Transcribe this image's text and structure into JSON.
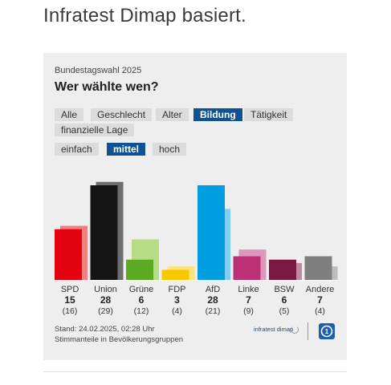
{
  "page": {
    "headline": "Infratest Dimap basiert."
  },
  "widget": {
    "kicker": "Bundestagswahl 2025",
    "title": "Wer wählte wen?",
    "tabs": [
      "Alle",
      "Geschlecht",
      "Alter",
      "Bildung",
      "Tätigkeit",
      "finanzielle Lage"
    ],
    "active_tab": "Bildung",
    "subtabs": [
      "einfach",
      "mittel",
      "hoch"
    ],
    "active_subtab": "mittel",
    "footnote_stand": "Stand: 24.02.2025, 02:28 Uhr",
    "footnote_desc": "Stimmanteile in Bevölkerungsgruppen",
    "brand_text": "infratest dimap",
    "colors": {
      "active_tab": "#0e5294",
      "panel": "#eeeeee",
      "tab": "#dcdcdc"
    },
    "icons": [
      "infratest-dimap-logo-icon",
      "ard-logo-icon"
    ]
  },
  "chart_data": {
    "type": "bar",
    "categories": [
      "SPD",
      "Union",
      "Grüne",
      "FDP",
      "AfD",
      "Linke",
      "BSW",
      "Andere"
    ],
    "series": [
      {
        "values": [
          15,
          28,
          6,
          3,
          28,
          7,
          6,
          7
        ]
      },
      {
        "values": [
          16,
          29,
          12,
          4,
          21,
          9,
          5,
          4
        ]
      }
    ],
    "previous_labels": [
      "(16)",
      "(29)",
      "(12)",
      "(4)",
      "(21)",
      "(9)",
      "(5)",
      "(4)"
    ],
    "colors": {
      "SPD": {
        "current": "#e3000f",
        "previous": "#f08080"
      },
      "Union": {
        "current": "#151515",
        "previous": "#6e6e6e"
      },
      "Grüne": {
        "current": "#5aaa22",
        "previous": "#b6dd86"
      },
      "FDP": {
        "current": "#f7c700",
        "previous": "#fce37a"
      },
      "AfD": {
        "current": "#009ee0",
        "previous": "#7fcdf0"
      },
      "Linke": {
        "current": "#be3075",
        "previous": "#dd97bb"
      },
      "BSW": {
        "current": "#7a1a40",
        "previous": "#bf8ba0"
      },
      "Andere": {
        "current": "#7f7f7f",
        "previous": "#bdbdbd"
      }
    },
    "ylim": [
      0,
      30
    ]
  }
}
